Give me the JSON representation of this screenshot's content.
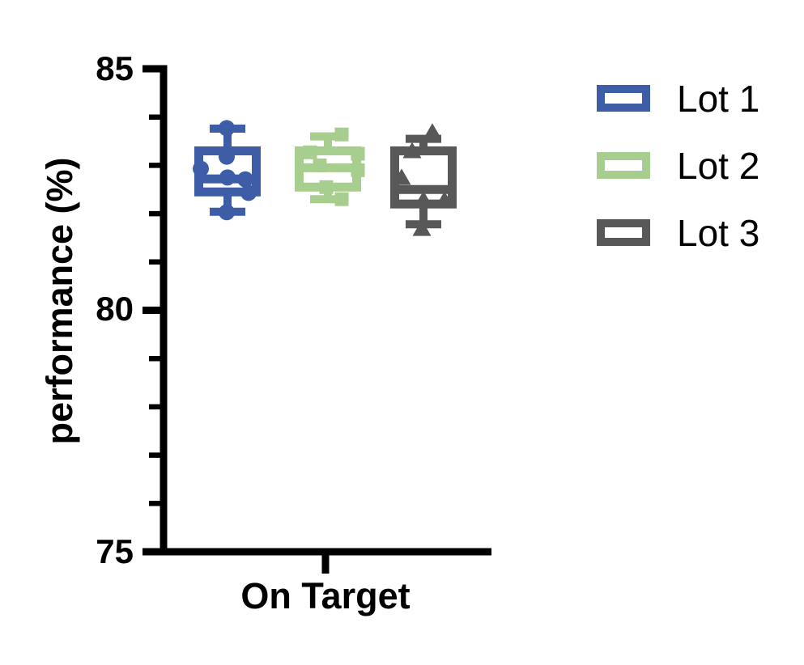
{
  "chart_data": {
    "type": "box",
    "title": "",
    "categories": [
      "On Target"
    ],
    "ylabel": "performance (%)",
    "xlabel": "",
    "ylim": [
      75,
      85
    ],
    "ytick_labels": [
      "85",
      "80",
      "75"
    ],
    "yticks_major": [
      85,
      80,
      75
    ],
    "yticks_minor": [
      84,
      83,
      82,
      81,
      79,
      78,
      77,
      76
    ],
    "grid": false,
    "legend_position": "right-outside",
    "series": [
      {
        "name": "Lot 1",
        "color": "#3D5EA6",
        "marker": "circle",
        "box": {
          "min": 82.04,
          "q1": 82.45,
          "median": 82.72,
          "q3": 83.3,
          "max": 83.76
        },
        "points": [
          83.77,
          83.18,
          82.93,
          82.75,
          82.71,
          82.43,
          82.03
        ],
        "point_x_offsets": [
          -1,
          -1,
          -33,
          0,
          22,
          26,
          -1
        ]
      },
      {
        "name": "Lot 2",
        "color": "#A8CE8F",
        "marker": "square",
        "box": {
          "min": 82.3,
          "q1": 82.55,
          "median": 82.95,
          "q3": 83.3,
          "max": 83.6
        },
        "points": [
          83.64,
          83.27,
          83.24,
          83.0,
          82.9,
          82.55,
          82.3
        ],
        "point_x_offsets": [
          17,
          -22,
          37,
          -10,
          37,
          -2,
          17
        ]
      },
      {
        "name": "Lot 3",
        "color": "#585858",
        "marker": "triangle",
        "box": {
          "min": 81.78,
          "q1": 82.2,
          "median": 82.5,
          "q3": 83.3,
          "max": 83.55
        },
        "points": [
          83.69,
          83.3,
          82.75,
          82.29,
          82.28,
          81.69
        ],
        "point_x_offsets": [
          11,
          -14,
          -27,
          0,
          26,
          -2
        ]
      }
    ]
  },
  "legend": {
    "items": [
      {
        "label": "Lot 1"
      },
      {
        "label": "Lot 2"
      },
      {
        "label": "Lot 3"
      }
    ]
  }
}
